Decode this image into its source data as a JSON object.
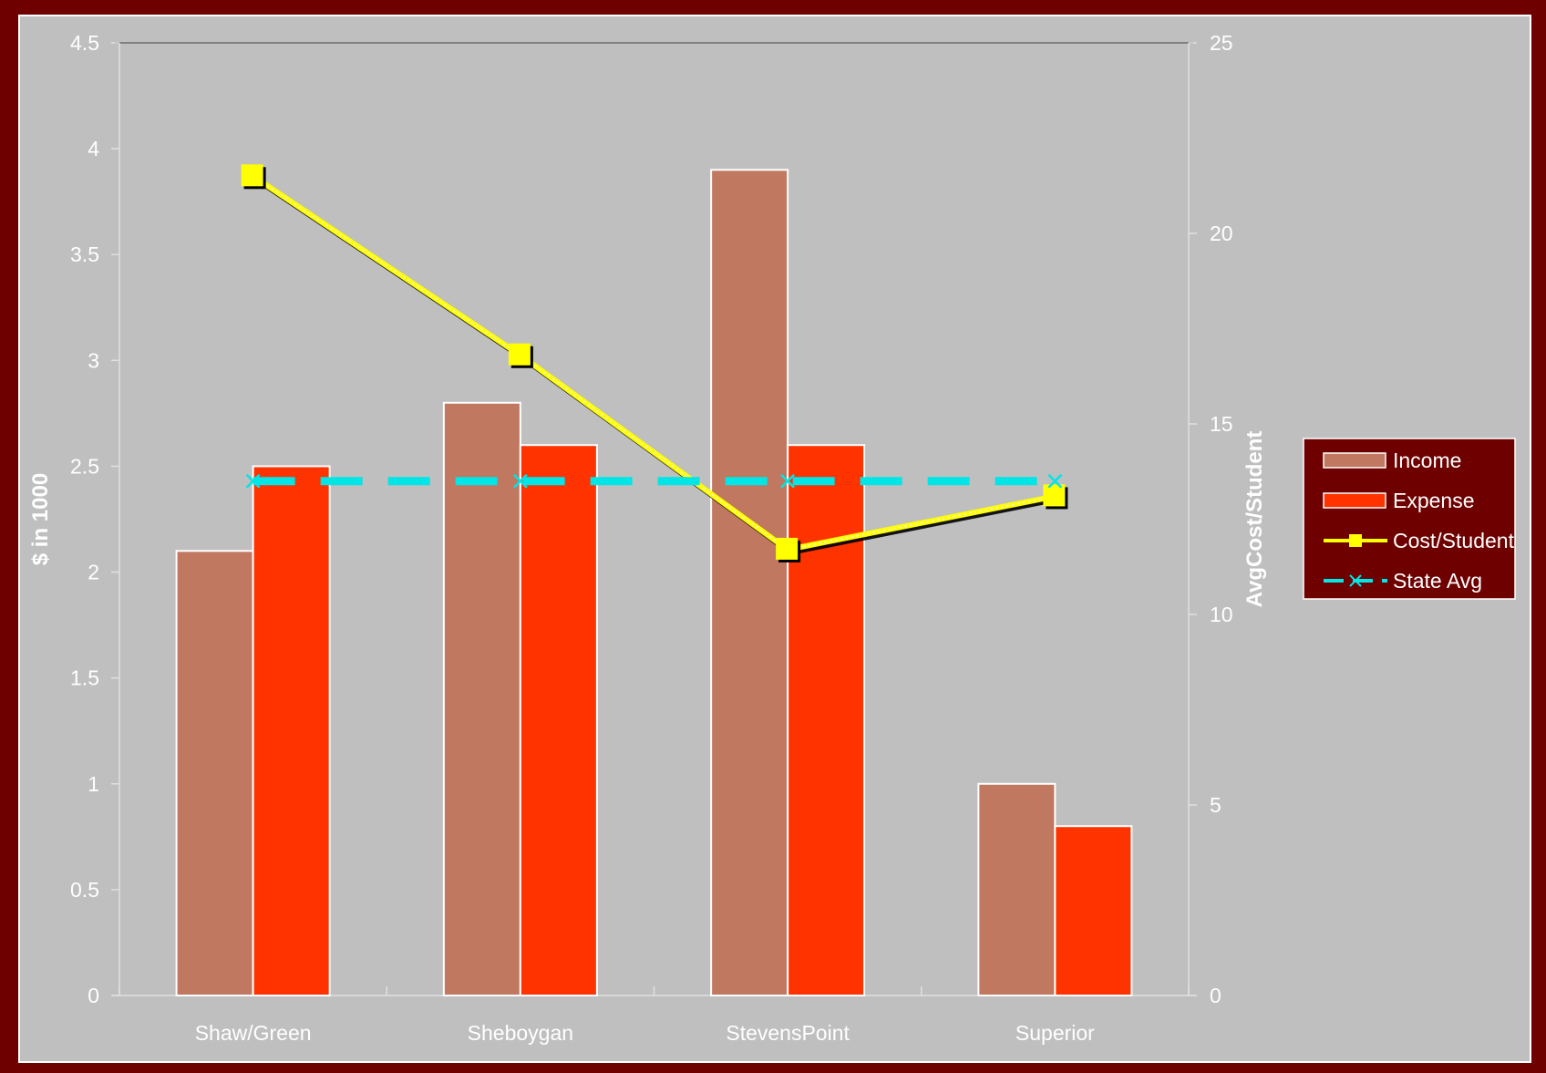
{
  "chart_data": {
    "type": "bar",
    "categories": [
      "Shaw/Green",
      "Sheboygan",
      "StevensPoint",
      "Superior"
    ],
    "series": [
      {
        "name": "Income",
        "kind": "bar",
        "axis": "left",
        "color": "#c07860",
        "values": [
          2.1,
          2.8,
          3.9,
          1.0
        ]
      },
      {
        "name": "Expense",
        "kind": "bar",
        "axis": "left",
        "color": "#ff3300",
        "values": [
          2.5,
          2.6,
          2.6,
          0.8
        ]
      },
      {
        "name": "Cost/Student",
        "kind": "line",
        "axis": "right",
        "color": "#ffff00",
        "marker": "square",
        "values": [
          21.5,
          16.8,
          11.7,
          13.1
        ]
      },
      {
        "name": "State Avg",
        "kind": "line",
        "axis": "right",
        "color": "#00e5e5",
        "marker": "x",
        "dashed": true,
        "values": [
          13.5,
          13.5,
          13.5,
          13.5
        ]
      }
    ],
    "ylabel": "$ in 1000",
    "y2label": "AvgCost/Student",
    "xlabel": "",
    "ylim": [
      0,
      4.5
    ],
    "y2lim": [
      0,
      25
    ],
    "yticks": [
      "0",
      "0.5",
      "1",
      "1.5",
      "2",
      "2.5",
      "3",
      "3.5",
      "4",
      "4.5"
    ],
    "y2ticks": [
      "0",
      "5",
      "10",
      "15",
      "20",
      "25"
    ],
    "legend_position": "right",
    "grid": false,
    "background": "#c0c0c0",
    "frame_color": "#6e0000",
    "legend_background": "#6e0000"
  }
}
